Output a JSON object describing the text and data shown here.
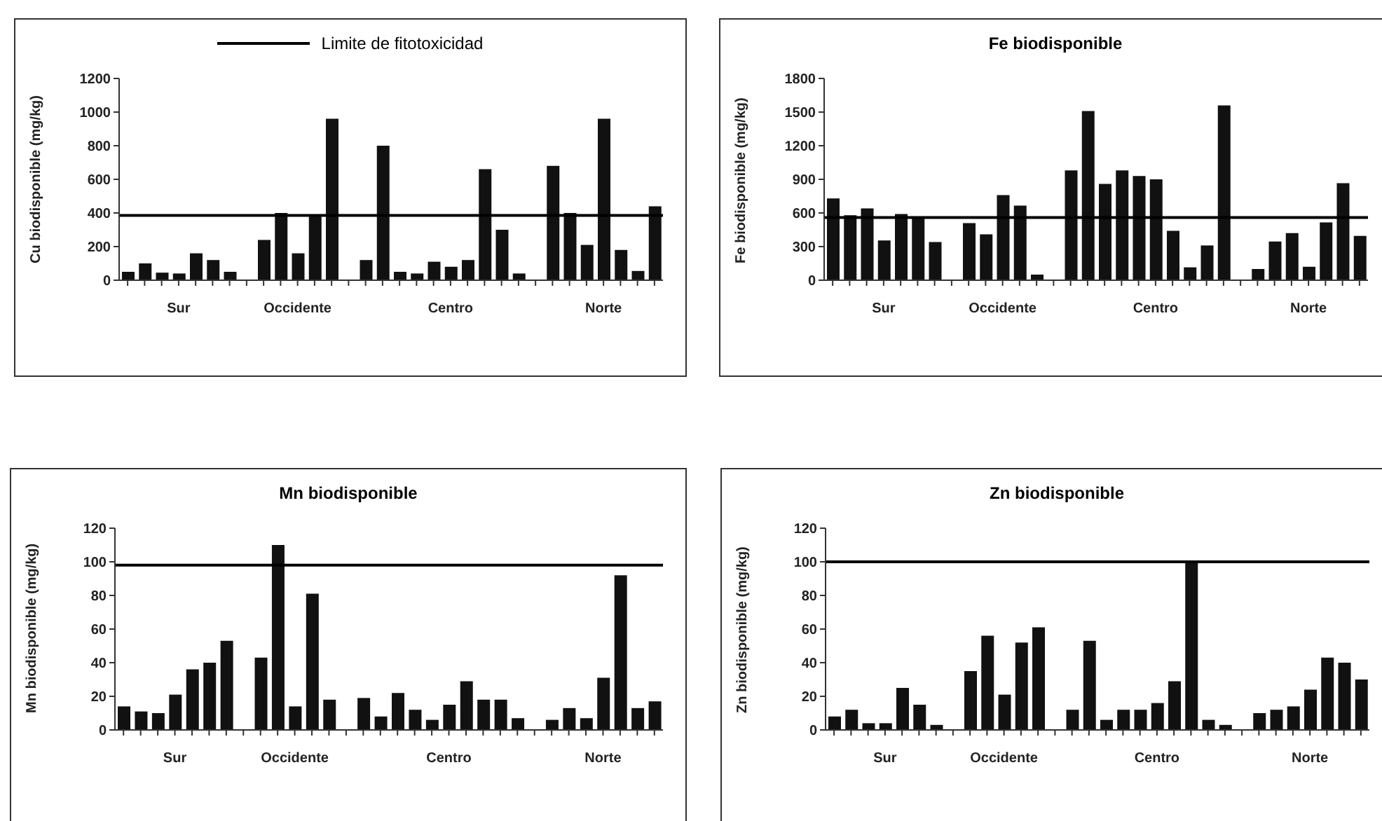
{
  "chart_data": [
    {
      "type": "bar",
      "ylabel": "Cu biodisponible (mg/kg)",
      "categories": [
        null,
        null,
        null,
        "Sur",
        null,
        null,
        null,
        null,
        null,
        null,
        "Occidente",
        null,
        null,
        null,
        null,
        null,
        null,
        null,
        null,
        "Centro",
        null,
        null,
        null,
        null,
        null,
        null,
        null,
        null,
        "Norte",
        null,
        null,
        null
      ],
      "values": [
        50,
        100,
        45,
        40,
        160,
        120,
        50,
        null,
        240,
        400,
        160,
        380,
        960,
        null,
        120,
        800,
        50,
        40,
        110,
        80,
        120,
        660,
        300,
        40,
        null,
        680,
        400,
        210,
        960,
        180,
        55,
        440
      ],
      "color": "#111111",
      "ylim": [
        0,
        1200
      ],
      "yticks": [
        0,
        200,
        400,
        600,
        800,
        1000,
        1200
      ],
      "ref_lines": [
        {
          "axis": "y",
          "value": 385,
          "label": "Limite de fitotoxicidad",
          "color": "#000000"
        }
      ]
    },
    {
      "type": "bar",
      "title": "Fe biodisponible",
      "ylabel": "Fe biodisponible (mg/kg)",
      "categories": [
        null,
        null,
        null,
        "Sur",
        null,
        null,
        null,
        null,
        null,
        null,
        "Occidente",
        null,
        null,
        null,
        null,
        null,
        null,
        null,
        null,
        "Centro",
        null,
        null,
        null,
        null,
        null,
        null,
        null,
        null,
        "Norte",
        null,
        null,
        null
      ],
      "values": [
        730,
        580,
        640,
        355,
        590,
        560,
        340,
        null,
        510,
        410,
        760,
        665,
        50,
        null,
        980,
        1510,
        860,
        980,
        930,
        900,
        440,
        115,
        310,
        1560,
        null,
        100,
        345,
        420,
        120,
        515,
        865,
        395
      ],
      "color": "#111111",
      "ylim": [
        0,
        1800
      ],
      "yticks": [
        0,
        300,
        600,
        900,
        1200,
        1500,
        1800
      ],
      "ref_lines": [
        {
          "axis": "y",
          "value": 560,
          "color": "#000000"
        }
      ]
    },
    {
      "type": "bar",
      "title": "Mn biodisponible",
      "ylabel": "Mn biodisponible (mg/kg)",
      "categories": [
        null,
        null,
        null,
        "Sur",
        null,
        null,
        null,
        null,
        null,
        null,
        "Occidente",
        null,
        null,
        null,
        null,
        null,
        null,
        null,
        null,
        "Centro",
        null,
        null,
        null,
        null,
        null,
        null,
        null,
        null,
        "Norte",
        null,
        null,
        null
      ],
      "values": [
        14,
        11,
        10,
        21,
        36,
        40,
        53,
        null,
        43,
        110,
        14,
        81,
        18,
        null,
        19,
        8,
        22,
        12,
        6,
        15,
        29,
        18,
        18,
        7,
        null,
        6,
        13,
        7,
        31,
        92,
        13,
        17
      ],
      "color": "#111111",
      "ylim": [
        0,
        120
      ],
      "yticks": [
        0,
        20,
        40,
        60,
        80,
        100,
        120
      ],
      "ref_lines": [
        {
          "axis": "y",
          "value": 98,
          "color": "#000000"
        }
      ]
    },
    {
      "type": "bar",
      "title": "Zn biodisponible",
      "ylabel": "Zn biodisponible (mg/kg)",
      "categories": [
        null,
        null,
        null,
        "Sur",
        null,
        null,
        null,
        null,
        null,
        null,
        "Occidente",
        null,
        null,
        null,
        null,
        null,
        null,
        null,
        null,
        "Centro",
        null,
        null,
        null,
        null,
        null,
        null,
        null,
        null,
        "Norte",
        null,
        null,
        null
      ],
      "values": [
        8,
        12,
        4,
        4,
        25,
        15,
        3,
        null,
        35,
        56,
        21,
        52,
        61,
        null,
        12,
        53,
        6,
        12,
        12,
        16,
        29,
        100,
        6,
        3,
        null,
        10,
        12,
        14,
        24,
        43,
        40,
        30
      ],
      "color": "#111111",
      "ylim": [
        0,
        120
      ],
      "yticks": [
        0,
        20,
        40,
        60,
        80,
        100,
        120
      ],
      "ref_lines": [
        {
          "axis": "y",
          "value": 100,
          "color": "#000000"
        }
      ]
    }
  ]
}
